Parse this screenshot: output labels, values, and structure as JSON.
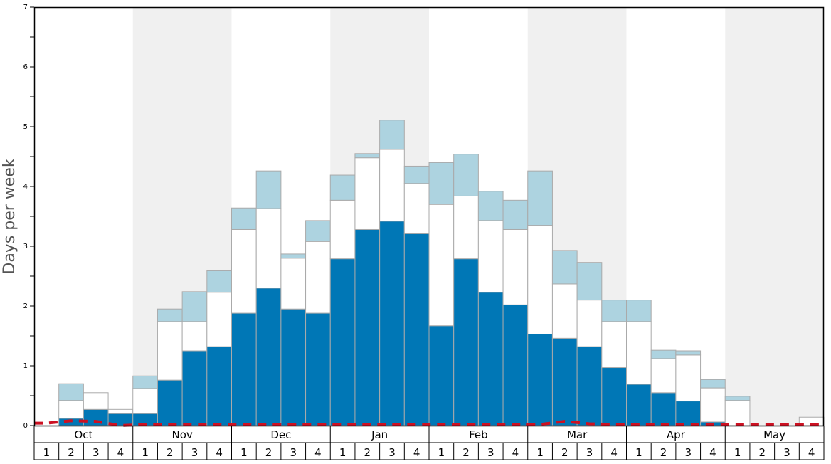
{
  "chart_data": {
    "type": "bar",
    "stacked": true,
    "ylabel": "Days per week",
    "ylim": [
      0,
      7
    ],
    "y_major_ticks": [
      "0",
      "1",
      "2",
      "3",
      "4",
      "5",
      "6",
      "7"
    ],
    "months": [
      "Oct",
      "Nov",
      "Dec",
      "Jan",
      "Feb",
      "Mar",
      "Apr",
      "May"
    ],
    "week_labels": [
      "1",
      "2",
      "3",
      "4"
    ],
    "colors": {
      "dark_series": "#0077b6",
      "white_series": "#ffffff",
      "light_series": "#add3e0",
      "bar_border": "#aaaaaa",
      "shade_band": "#f0f0f0",
      "dashed_line": "#cc1122"
    },
    "series": [
      {
        "values": [
          0,
          0.12,
          0.27,
          0.2,
          0.2,
          0.76,
          1.25,
          1.32,
          1.88,
          2.3,
          1.95,
          1.88,
          2.79,
          3.28,
          3.42,
          3.21,
          1.67,
          2.79,
          2.23,
          2.02,
          1.53,
          1.46,
          1.32,
          0.97,
          0.69,
          0.55,
          0.41,
          0.06,
          0,
          0,
          0,
          0
        ]
      },
      {
        "values": [
          0,
          0.3,
          0.28,
          0.07,
          0.42,
          0.98,
          0.49,
          0.91,
          1.4,
          1.33,
          0.85,
          1.2,
          0.98,
          1.2,
          1.2,
          0.84,
          2.03,
          1.05,
          1.2,
          1.26,
          1.82,
          0.91,
          0.78,
          0.77,
          1.05,
          0.57,
          0.77,
          0.57,
          0.42,
          0,
          0,
          0.14
        ]
      },
      {
        "values": [
          0,
          0.28,
          0,
          0,
          0.21,
          0.21,
          0.5,
          0.36,
          0.36,
          0.63,
          0.07,
          0.35,
          0.42,
          0.07,
          0.49,
          0.29,
          0.7,
          0.7,
          0.49,
          0.49,
          0.91,
          0.56,
          0.63,
          0.36,
          0.36,
          0.14,
          0.07,
          0.14,
          0.07,
          0,
          0,
          0
        ]
      }
    ],
    "dashed_line": {
      "values": [
        0.04,
        0.08,
        0.07,
        0,
        0.02,
        0.02,
        0.02,
        0.02,
        0.02,
        0.02,
        0.02,
        0.02,
        0.02,
        0.02,
        0.02,
        0.02,
        0.02,
        0.02,
        0.02,
        0.02,
        0.02,
        0.07,
        0.03,
        0.02,
        0.02,
        0.02,
        0.02,
        0.02,
        0.02,
        0.02,
        0.02,
        0.02
      ]
    }
  }
}
